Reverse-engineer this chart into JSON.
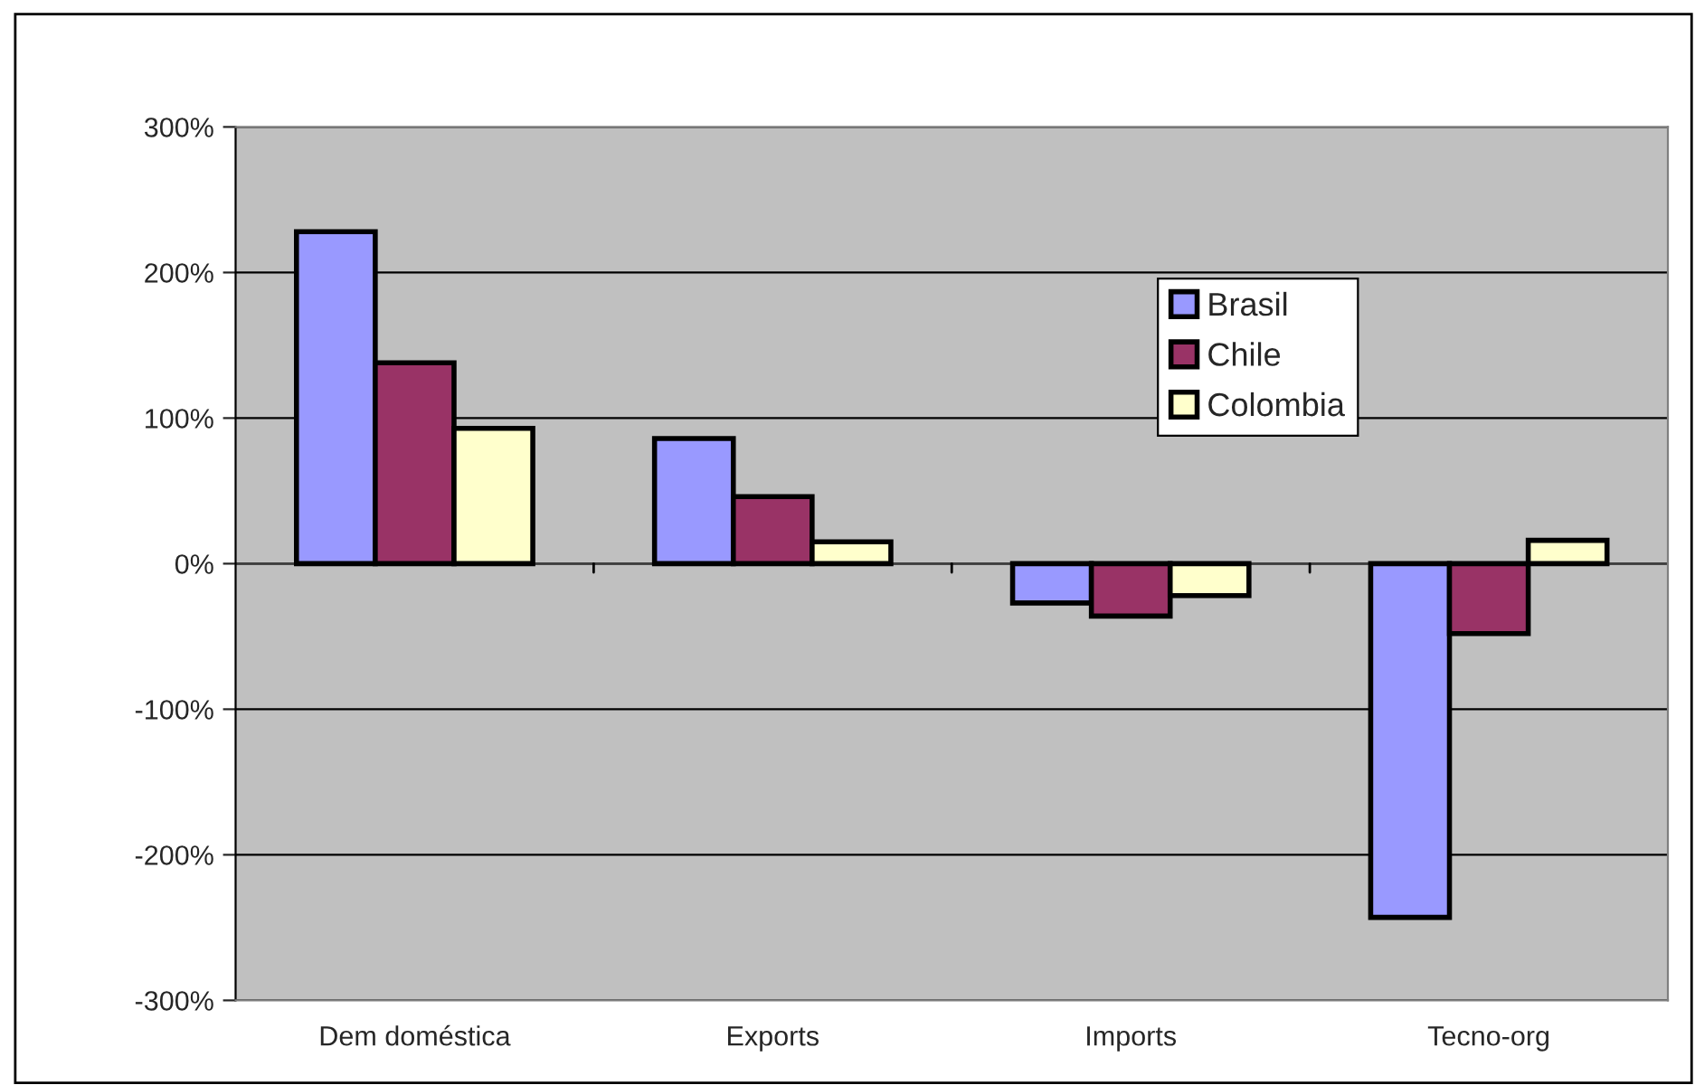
{
  "chart_data": {
    "type": "bar",
    "categories": [
      "Dem doméstica",
      "Exports",
      "Imports",
      "Tecno-org"
    ],
    "series": [
      {
        "name": "Brasil",
        "color": "#9999ff",
        "values": [
          228,
          86,
          -27,
          -243
        ]
      },
      {
        "name": "Chile",
        "color": "#993366",
        "values": [
          138,
          46,
          -36,
          -48
        ]
      },
      {
        "name": "Colombia",
        "color": "#ffffcc",
        "values": [
          93,
          15,
          -22,
          16
        ]
      }
    ],
    "ylim": [
      -300,
      300
    ],
    "yticks": [
      {
        "value": -300,
        "label": "-300%"
      },
      {
        "value": -200,
        "label": "-200%"
      },
      {
        "value": -100,
        "label": "-100%"
      },
      {
        "value": 0,
        "label": "0%"
      },
      {
        "value": 100,
        "label": "100%"
      },
      {
        "value": 200,
        "label": "200%"
      },
      {
        "value": 300,
        "label": "300%"
      }
    ],
    "grid": "y",
    "legend": "top right"
  }
}
